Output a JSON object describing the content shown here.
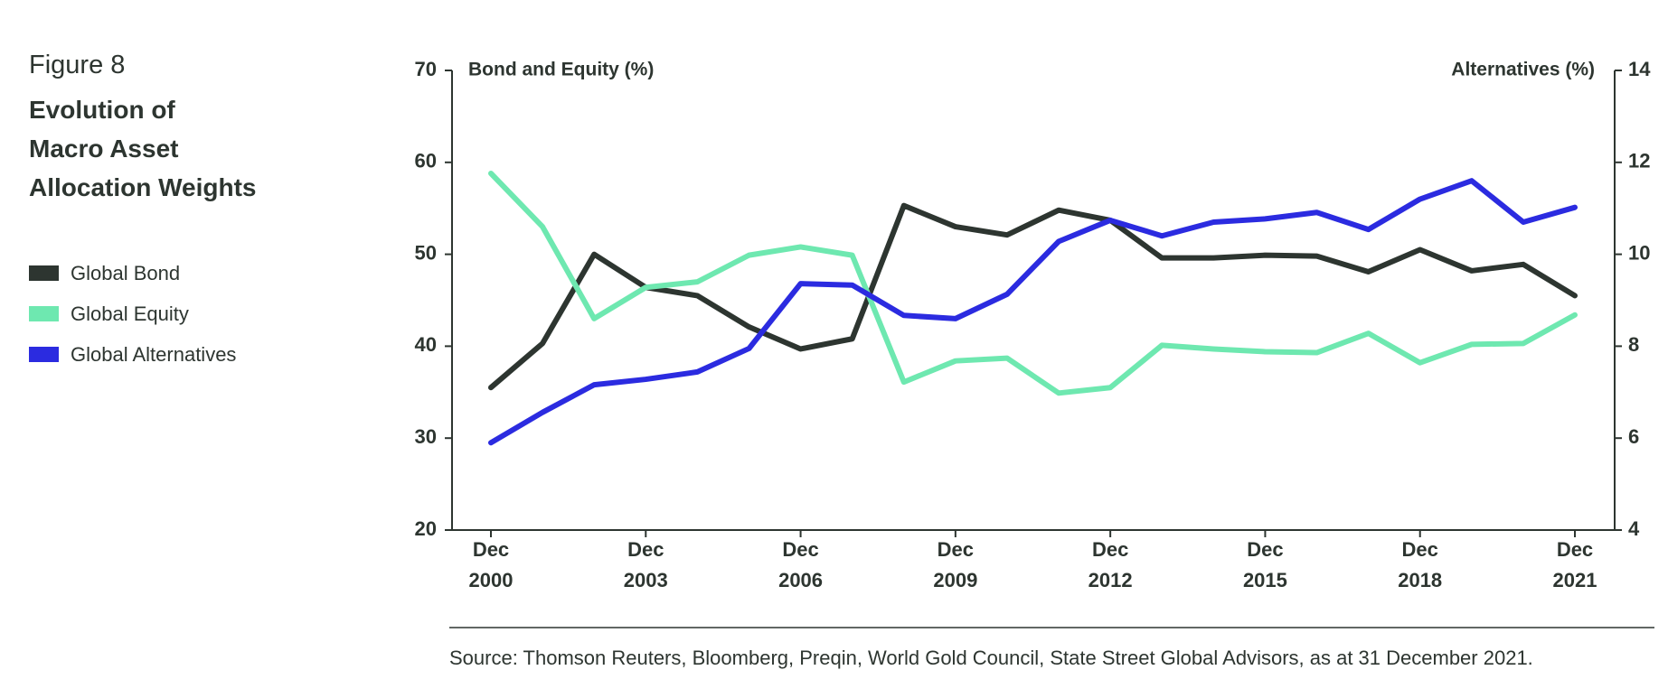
{
  "chart_data": {
    "type": "line",
    "figure_label": "Figure 8",
    "title": [
      "Evolution of",
      "Macro Asset",
      "Allocation Weights"
    ],
    "y_label": "Bond and Equity (%)",
    "y2_label": "Alternatives (%)",
    "source": "Source: Thomson Reuters, Bloomberg, Preqin, World Gold Council, State Street Global Advisors, as at 31 December 2021.",
    "categories": [
      "Dec 2000",
      null,
      null,
      "Dec 2003",
      null,
      null,
      "Dec 2006",
      null,
      null,
      "Dec 2009",
      null,
      null,
      "Dec 2012",
      null,
      null,
      "Dec 2015",
      null,
      null,
      "Dec 2018",
      null,
      null,
      "Dec 2021"
    ],
    "ylim": [
      20,
      70
    ],
    "yticks": [
      20,
      30,
      40,
      50,
      60,
      70
    ],
    "y2lim": [
      4,
      14
    ],
    "y2ticks": [
      4,
      6,
      8,
      10,
      12,
      14
    ],
    "series": [
      {
        "name": "Global Bond",
        "color": "#2d3530",
        "values": [
          35.5,
          40.3,
          50.0,
          46.4,
          45.5,
          42.1,
          39.7,
          40.8,
          55.3,
          53.0,
          52.1,
          54.8,
          53.7,
          49.6,
          49.6,
          49.9,
          49.8,
          48.1,
          50.5,
          48.2,
          48.9,
          45.5
        ]
      },
      {
        "name": "Global Equity",
        "color": "#6ee8b0",
        "values": [
          58.8,
          53.0,
          43.0,
          46.4,
          47.0,
          49.9,
          50.8,
          49.9,
          36.1,
          38.4,
          38.7,
          34.9,
          35.5,
          40.1,
          39.7,
          39.4,
          39.3,
          41.4,
          38.2,
          40.2,
          40.3,
          43.4
        ]
      },
      {
        "name": "Global Alternatives",
        "color": "#2b2be0",
        "axis": "y2",
        "values": [
          5.9,
          6.56,
          7.16,
          7.28,
          7.44,
          7.95,
          9.36,
          9.33,
          8.67,
          8.6,
          9.13,
          10.28,
          10.74,
          10.4,
          10.7,
          10.77,
          10.91,
          10.54,
          11.2,
          11.6,
          10.7,
          11.02
        ]
      }
    ]
  }
}
